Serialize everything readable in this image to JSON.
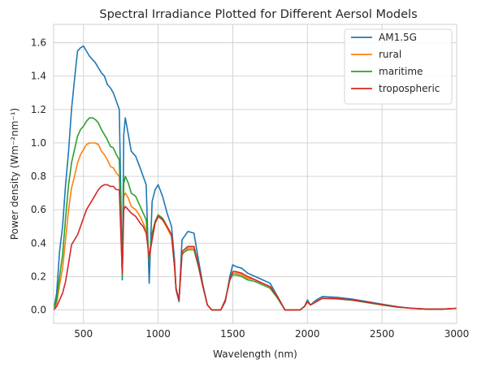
{
  "chart_data": {
    "type": "line",
    "title": "Spectral Irradiance Plotted for Different Aersol Models",
    "xlabel": "Wavelength (nm)",
    "ylabel": "Power density (Wm⁻²nm⁻¹)",
    "xlim": [
      300,
      3000
    ],
    "ylim": [
      -0.08,
      1.71
    ],
    "xticks": [
      500,
      1000,
      1500,
      2000,
      2500,
      3000
    ],
    "yticks": [
      0.0,
      0.2,
      0.4,
      0.6,
      0.8,
      1.0,
      1.2,
      1.4,
      1.6
    ],
    "grid": true,
    "legend_position": "top-right",
    "series": [
      {
        "name": "AM1.5G",
        "color": "#1f77b4",
        "x": [
          300,
          320,
          340,
          360,
          380,
          400,
          420,
          440,
          460,
          480,
          500,
          520,
          540,
          560,
          580,
          600,
          620,
          640,
          660,
          680,
          700,
          720,
          740,
          760,
          770,
          780,
          800,
          820,
          850,
          880,
          900,
          920,
          940,
          960,
          980,
          1000,
          1030,
          1060,
          1090,
          1110,
          1120,
          1140,
          1160,
          1200,
          1240,
          1270,
          1300,
          1330,
          1360,
          1380,
          1400,
          1420,
          1450,
          1480,
          1500,
          1520,
          1560,
          1600,
          1650,
          1700,
          1750,
          1800,
          1850,
          1900,
          1950,
          1980,
          2000,
          2020,
          2060,
          2100,
          2200,
          2300,
          2400,
          2500,
          2600,
          2700,
          2800,
          2900,
          3000
        ],
        "y": [
          0.0,
          0.1,
          0.35,
          0.5,
          0.75,
          0.95,
          1.2,
          1.38,
          1.55,
          1.57,
          1.58,
          1.55,
          1.52,
          1.5,
          1.48,
          1.45,
          1.42,
          1.4,
          1.35,
          1.33,
          1.3,
          1.25,
          1.2,
          0.18,
          1.05,
          1.15,
          1.05,
          0.95,
          0.92,
          0.85,
          0.8,
          0.75,
          0.16,
          0.65,
          0.72,
          0.75,
          0.68,
          0.58,
          0.5,
          0.3,
          0.12,
          0.05,
          0.42,
          0.47,
          0.46,
          0.3,
          0.15,
          0.03,
          0.0,
          0.0,
          0.0,
          0.0,
          0.05,
          0.2,
          0.27,
          0.26,
          0.25,
          0.22,
          0.2,
          0.18,
          0.16,
          0.08,
          0.0,
          0.0,
          0.0,
          0.02,
          0.06,
          0.03,
          0.06,
          0.08,
          0.075,
          0.065,
          0.05,
          0.035,
          0.02,
          0.01,
          0.005,
          0.005,
          0.01
        ]
      },
      {
        "name": "rural",
        "color": "#ff7f0e",
        "x": [
          300,
          320,
          340,
          360,
          380,
          400,
          420,
          440,
          460,
          480,
          500,
          520,
          540,
          560,
          580,
          600,
          620,
          640,
          660,
          680,
          700,
          720,
          740,
          760,
          770,
          780,
          800,
          820,
          850,
          880,
          900,
          920,
          940,
          960,
          980,
          1000,
          1030,
          1060,
          1090,
          1110,
          1120,
          1140,
          1160,
          1200,
          1240,
          1270,
          1300,
          1330,
          1360,
          1380,
          1400,
          1420,
          1450,
          1480,
          1500,
          1520,
          1560,
          1600,
          1650,
          1700,
          1750,
          1800,
          1850,
          1900,
          1950,
          1980,
          2000,
          2020,
          2060,
          2100,
          2200,
          2300,
          2400,
          2500,
          2600,
          2700,
          2800,
          2900,
          3000
        ],
        "y": [
          0.0,
          0.04,
          0.15,
          0.25,
          0.42,
          0.6,
          0.73,
          0.8,
          0.88,
          0.93,
          0.96,
          0.99,
          1.0,
          1.0,
          1.0,
          0.99,
          0.95,
          0.93,
          0.9,
          0.86,
          0.85,
          0.82,
          0.8,
          0.2,
          0.68,
          0.7,
          0.67,
          0.62,
          0.6,
          0.56,
          0.52,
          0.48,
          0.3,
          0.43,
          0.52,
          0.56,
          0.54,
          0.49,
          0.44,
          0.26,
          0.13,
          0.06,
          0.33,
          0.37,
          0.37,
          0.26,
          0.14,
          0.03,
          0.0,
          0.0,
          0.0,
          0.0,
          0.06,
          0.18,
          0.22,
          0.22,
          0.21,
          0.19,
          0.18,
          0.16,
          0.14,
          0.08,
          0.0,
          0.0,
          0.0,
          0.02,
          0.05,
          0.03,
          0.05,
          0.07,
          0.068,
          0.06,
          0.045,
          0.032,
          0.018,
          0.01,
          0.005,
          0.005,
          0.01
        ]
      },
      {
        "name": "maritime",
        "color": "#2ca02c",
        "x": [
          300,
          320,
          340,
          360,
          380,
          400,
          420,
          440,
          460,
          480,
          500,
          520,
          540,
          560,
          580,
          600,
          620,
          640,
          660,
          680,
          700,
          720,
          740,
          760,
          770,
          780,
          800,
          820,
          850,
          880,
          900,
          920,
          940,
          960,
          980,
          1000,
          1030,
          1060,
          1090,
          1110,
          1120,
          1140,
          1160,
          1200,
          1240,
          1270,
          1300,
          1330,
          1360,
          1380,
          1400,
          1420,
          1450,
          1480,
          1500,
          1520,
          1560,
          1600,
          1650,
          1700,
          1750,
          1800,
          1850,
          1900,
          1950,
          1980,
          2000,
          2020,
          2060,
          2100,
          2200,
          2300,
          2400,
          2500,
          2600,
          2700,
          2800,
          2900,
          3000
        ],
        "y": [
          0.0,
          0.06,
          0.2,
          0.33,
          0.55,
          0.75,
          0.88,
          0.96,
          1.04,
          1.08,
          1.1,
          1.13,
          1.15,
          1.15,
          1.14,
          1.12,
          1.08,
          1.05,
          1.02,
          0.98,
          0.97,
          0.93,
          0.9,
          0.2,
          0.76,
          0.8,
          0.76,
          0.7,
          0.68,
          0.62,
          0.58,
          0.54,
          0.3,
          0.46,
          0.53,
          0.57,
          0.55,
          0.5,
          0.45,
          0.26,
          0.13,
          0.06,
          0.34,
          0.36,
          0.36,
          0.26,
          0.14,
          0.03,
          0.0,
          0.0,
          0.0,
          0.0,
          0.06,
          0.18,
          0.21,
          0.21,
          0.2,
          0.18,
          0.17,
          0.15,
          0.13,
          0.07,
          0.0,
          0.0,
          0.0,
          0.02,
          0.05,
          0.03,
          0.05,
          0.07,
          0.066,
          0.058,
          0.044,
          0.03,
          0.018,
          0.01,
          0.005,
          0.005,
          0.01
        ]
      },
      {
        "name": "tropospheric",
        "color": "#d62728",
        "x": [
          300,
          320,
          340,
          360,
          380,
          400,
          420,
          440,
          460,
          480,
          500,
          520,
          540,
          560,
          580,
          600,
          620,
          640,
          660,
          680,
          700,
          720,
          740,
          760,
          770,
          780,
          800,
          820,
          850,
          880,
          900,
          920,
          940,
          960,
          980,
          1000,
          1030,
          1060,
          1090,
          1110,
          1120,
          1140,
          1160,
          1200,
          1240,
          1270,
          1300,
          1330,
          1360,
          1380,
          1400,
          1420,
          1450,
          1480,
          1500,
          1520,
          1560,
          1600,
          1650,
          1700,
          1750,
          1800,
          1850,
          1900,
          1950,
          1980,
          2000,
          2020,
          2060,
          2100,
          2200,
          2300,
          2400,
          2500,
          2600,
          2700,
          2800,
          2900,
          3000
        ],
        "y": [
          0.0,
          0.02,
          0.06,
          0.1,
          0.17,
          0.28,
          0.39,
          0.42,
          0.45,
          0.5,
          0.55,
          0.6,
          0.63,
          0.66,
          0.69,
          0.72,
          0.74,
          0.75,
          0.75,
          0.74,
          0.74,
          0.72,
          0.72,
          0.22,
          0.6,
          0.62,
          0.6,
          0.58,
          0.56,
          0.52,
          0.5,
          0.46,
          0.32,
          0.42,
          0.52,
          0.56,
          0.54,
          0.5,
          0.45,
          0.26,
          0.13,
          0.06,
          0.35,
          0.38,
          0.38,
          0.27,
          0.14,
          0.03,
          0.0,
          0.0,
          0.0,
          0.0,
          0.06,
          0.18,
          0.23,
          0.23,
          0.22,
          0.2,
          0.18,
          0.16,
          0.14,
          0.08,
          0.0,
          0.0,
          0.0,
          0.02,
          0.05,
          0.03,
          0.05,
          0.07,
          0.068,
          0.06,
          0.046,
          0.032,
          0.018,
          0.01,
          0.005,
          0.005,
          0.01
        ]
      }
    ]
  }
}
